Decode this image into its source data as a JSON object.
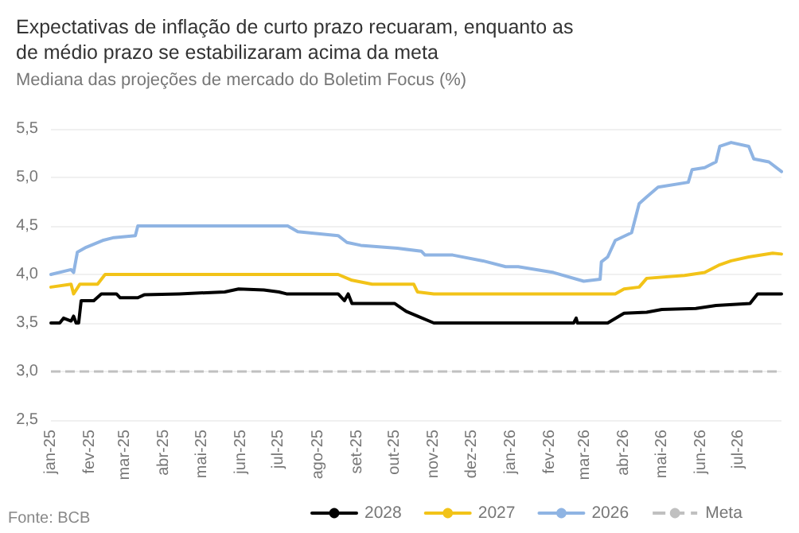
{
  "chart_data": {
    "type": "line",
    "title": "Expectativas de inflação de curto prazo recuaram, enquanto as de médio prazo se estabilizaram acima da meta",
    "subtitle": "Mediana das projeções de mercado do Boletim Focus (%)",
    "annotations": [
      "Fonte: BCB"
    ],
    "xlim": [
      "2025-01-01",
      "2026-08-04"
    ],
    "xticks": [
      {
        "value": "2025-01",
        "label": "jan-25"
      },
      {
        "value": "2025-02",
        "label": "fev-25"
      },
      {
        "value": "2025-03",
        "label": "mar-25"
      },
      {
        "value": "2025-04",
        "label": "abr-25"
      },
      {
        "value": "2025-05",
        "label": "mai-25"
      },
      {
        "value": "2025-06",
        "label": "jun-25"
      },
      {
        "value": "2025-07",
        "label": "jul-25"
      },
      {
        "value": "2025-08",
        "label": "ago-25"
      },
      {
        "value": "2025-09",
        "label": "set-25"
      },
      {
        "value": "2025-10",
        "label": "out-25"
      },
      {
        "value": "2025-11",
        "label": "nov-25"
      },
      {
        "value": "2025-12",
        "label": "dez-25"
      },
      {
        "value": "2026-01",
        "label": "jan-26"
      },
      {
        "value": "2026-02",
        "label": "fev-26"
      },
      {
        "value": "2026-03",
        "label": "mar-26"
      },
      {
        "value": "2026-04",
        "label": "abr-26"
      },
      {
        "value": "2026-05",
        "label": "mai-26"
      },
      {
        "value": "2026-06",
        "label": "jun-26"
      },
      {
        "value": "2026-07",
        "label": "jul-26"
      }
    ],
    "ylim": [
      2.5,
      5.5
    ],
    "yticks": [
      {
        "value": 2.5,
        "label": "2,5"
      },
      {
        "value": 3,
        "label": "3,0"
      },
      {
        "value": 3.5,
        "label": "3,5"
      },
      {
        "value": 4,
        "label": "4,0"
      },
      {
        "value": 4.5,
        "label": "4,5"
      },
      {
        "value": 5,
        "label": "5,0"
      },
      {
        "value": 5.5,
        "label": "5,5"
      }
    ],
    "grid": "y",
    "legend": "bottom",
    "marker": "none",
    "line_style": "solid",
    "series": [
      {
        "name": "2028",
        "color": "#000000",
        "x": [
          "2025-01-01",
          "2025-01-08",
          "2025-01-11",
          "2025-01-17",
          "2025-01-19",
          "2025-01-21",
          "2025-01-23",
          "2025-01-25",
          "2025-02-04",
          "2025-02-10",
          "2025-02-22",
          "2025-02-25",
          "2025-03-11",
          "2025-03-16",
          "2025-04-13",
          "2025-05-19",
          "2025-05-30",
          "2025-06-19",
          "2025-07-01",
          "2025-07-07",
          "2025-08-17",
          "2025-08-22",
          "2025-08-25",
          "2025-08-28",
          "2025-10-01",
          "2025-10-10",
          "2025-10-19",
          "2025-11-01",
          "2026-02-20",
          "2026-02-22",
          "2026-02-23",
          "2026-03-19",
          "2026-04-01",
          "2026-04-19",
          "2026-05-01",
          "2026-05-28",
          "2026-06-13",
          "2026-07-10",
          "2026-07-16",
          "2026-08-04"
        ],
        "values": [
          3.5,
          3.5,
          3.55,
          3.52,
          3.57,
          3.5,
          3.5,
          3.73,
          3.73,
          3.8,
          3.8,
          3.76,
          3.76,
          3.79,
          3.8,
          3.82,
          3.85,
          3.84,
          3.82,
          3.8,
          3.8,
          3.73,
          3.8,
          3.7,
          3.7,
          3.62,
          3.57,
          3.5,
          3.5,
          3.55,
          3.5,
          3.5,
          3.6,
          3.61,
          3.64,
          3.65,
          3.68,
          3.7,
          3.8,
          3.8
        ]
      },
      {
        "name": "2027",
        "color": "#f2c318",
        "x": [
          "2025-01-01",
          "2025-01-17",
          "2025-01-19",
          "2025-01-24",
          "2025-02-07",
          "2025-02-13",
          "2025-08-17",
          "2025-08-28",
          "2025-09-13",
          "2025-10-16",
          "2025-10-19",
          "2025-11-01",
          "2026-03-25",
          "2026-04-01",
          "2026-04-13",
          "2026-04-19",
          "2026-05-19",
          "2026-06-04",
          "2026-06-16",
          "2026-06-25",
          "2026-07-09",
          "2026-07-28",
          "2026-08-04"
        ],
        "values": [
          3.87,
          3.9,
          3.8,
          3.9,
          3.9,
          4.0,
          4.0,
          3.94,
          3.9,
          3.9,
          3.82,
          3.8,
          3.8,
          3.85,
          3.87,
          3.96,
          3.99,
          4.02,
          4.1,
          4.14,
          4.18,
          4.22,
          4.21
        ]
      },
      {
        "name": "2026",
        "color": "#8fb4e3",
        "x": [
          "2025-01-01",
          "2025-01-17",
          "2025-01-19",
          "2025-01-22",
          "2025-01-29",
          "2025-02-11",
          "2025-02-20",
          "2025-03-09",
          "2025-03-11",
          "2025-07-08",
          "2025-07-16",
          "2025-08-17",
          "2025-08-24",
          "2025-09-04",
          "2025-10-03",
          "2025-10-22",
          "2025-10-25",
          "2025-11-16",
          "2025-12-10",
          "2025-12-28",
          "2026-01-07",
          "2026-02-04",
          "2026-02-28",
          "2026-03-13",
          "2026-03-14",
          "2026-03-19",
          "2026-03-25",
          "2026-04-07",
          "2026-04-13",
          "2026-04-19",
          "2026-04-28",
          "2026-05-22",
          "2026-05-25",
          "2026-06-04",
          "2026-06-13",
          "2026-06-16",
          "2026-06-25",
          "2026-07-09",
          "2026-07-13",
          "2026-07-25",
          "2026-08-04"
        ],
        "values": [
          4.0,
          4.05,
          4.02,
          4.23,
          4.28,
          4.35,
          4.38,
          4.4,
          4.5,
          4.5,
          4.44,
          4.4,
          4.33,
          4.3,
          4.27,
          4.24,
          4.2,
          4.2,
          4.14,
          4.08,
          4.08,
          4.02,
          3.93,
          3.95,
          4.13,
          4.18,
          4.35,
          4.43,
          4.73,
          4.8,
          4.9,
          4.95,
          5.08,
          5.1,
          5.16,
          5.32,
          5.36,
          5.32,
          5.19,
          5.16,
          5.06
        ]
      }
    ],
    "ref_lines": [
      {
        "axis": "y",
        "value": 3,
        "label": "Meta",
        "color": "#c0c0c0",
        "line_style": "dashed"
      }
    ]
  }
}
